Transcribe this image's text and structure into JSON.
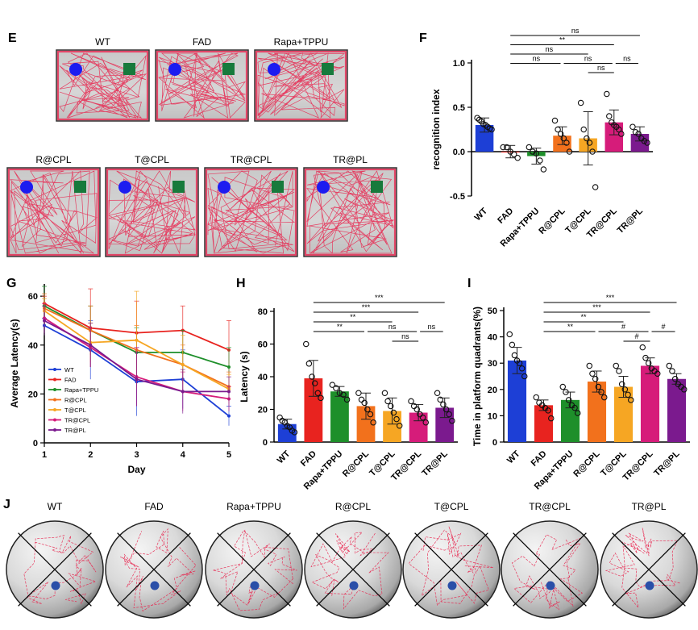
{
  "panel_letters": {
    "E": "E",
    "F": "F",
    "G": "G",
    "H": "H",
    "I": "I",
    "J": "J"
  },
  "groups": [
    "WT",
    "FAD",
    "Rapa+TPPU",
    "R@CPL",
    "T@CPL",
    "TR@CPL",
    "TR@PL"
  ],
  "colors": {
    "WT": "#1d3fd6",
    "FAD": "#e8231f",
    "Rapa+TPPU": "#1e8f2a",
    "R@CPL": "#f2711c",
    "T@CPL": "#f6a623",
    "TR@CPL": "#d61c7a",
    "TR@PL": "#7b1a8e",
    "track": "#e8264f",
    "object_circle": "#1c1cf0",
    "object_square": "#177a3c",
    "platform": "#2a4fa8"
  },
  "panel_E": {
    "tiles": [
      "WT",
      "FAD",
      "Rapa+TPPU",
      "R@CPL",
      "T@CPL",
      "TR@CPL",
      "TR@PL"
    ],
    "description_icons": [
      "object-circle",
      "object-square"
    ]
  },
  "panel_J": {
    "tiles": [
      "WT",
      "FAD",
      "Rapa+TPPU",
      "R@CPL",
      "T@CPL",
      "TR@CPL",
      "TR@PL"
    ]
  },
  "chart_data": [
    {
      "id": "F",
      "type": "bar",
      "title": "",
      "xlabel": "",
      "ylabel": "recognition index",
      "ylim": [
        -0.5,
        1.0
      ],
      "yticks": [
        "-0.5",
        "0.0",
        "0.5",
        "1.0"
      ],
      "yticks_values": [
        -0.5,
        0.0,
        0.5,
        1.0
      ],
      "categories": [
        "WT",
        "FAD",
        "Rapa+TPPU",
        "R@CPL",
        "T@CPL",
        "TR@CPL",
        "TR@PL"
      ],
      "values": [
        0.3,
        0.0,
        -0.05,
        0.18,
        0.15,
        0.33,
        0.2
      ],
      "errors": [
        0.08,
        0.07,
        0.09,
        0.1,
        0.3,
        0.14,
        0.08
      ],
      "points": [
        [
          0.38,
          0.36,
          0.34,
          0.31,
          0.3,
          0.28,
          0.26,
          0.25
        ],
        [
          0.05,
          0.05,
          0.0,
          -0.03,
          -0.07
        ],
        [
          0.05,
          0.0,
          -0.02,
          -0.1,
          -0.2
        ],
        [
          0.35,
          0.25,
          0.2,
          0.15,
          0.1,
          0.0
        ],
        [
          0.55,
          0.25,
          0.15,
          0.1,
          0.0,
          -0.4
        ],
        [
          0.65,
          0.4,
          0.33,
          0.3,
          0.28,
          0.25,
          0.2
        ],
        [
          0.28,
          0.22,
          0.2,
          0.15,
          0.12,
          0.1
        ]
      ],
      "brackets": [
        {
          "from": 1,
          "to": 6,
          "level": 0,
          "label": "ns"
        },
        {
          "from": 1,
          "to": 5,
          "level": 1,
          "label": "**"
        },
        {
          "from": 1,
          "to": 4,
          "level": 2,
          "label": "ns"
        },
        {
          "from": 1,
          "to": 3,
          "level": 3,
          "label": "ns"
        },
        {
          "from": 3,
          "to": 5,
          "level": 3,
          "label": "ns"
        },
        {
          "from": 5,
          "to": 6,
          "level": 3,
          "label": "ns"
        },
        {
          "from": 4,
          "to": 5,
          "level": 4,
          "label": "ns"
        }
      ]
    },
    {
      "id": "G",
      "type": "line",
      "title": "",
      "xlabel": "Day",
      "ylabel": "Average Latency(s)",
      "x": [
        1,
        2,
        3,
        4,
        5
      ],
      "xticks": [
        "1",
        "2",
        "3",
        "4",
        "5"
      ],
      "ylim": [
        0,
        65
      ],
      "yticks": [
        "0",
        "20",
        "40",
        "60"
      ],
      "yticks_values": [
        0,
        20,
        40,
        60
      ],
      "legend_position": "lower-left",
      "series": [
        {
          "name": "WT",
          "values": [
            48,
            38,
            25,
            26,
            11
          ],
          "err": [
            3,
            12,
            14,
            12,
            4
          ]
        },
        {
          "name": "FAD",
          "values": [
            57,
            47,
            45,
            46,
            38
          ],
          "err": [
            3,
            16,
            13,
            10,
            12
          ]
        },
        {
          "name": "Rapa+TPPU",
          "values": [
            56,
            46,
            37,
            37,
            31
          ],
          "err": [
            8,
            10,
            10,
            9,
            8
          ]
        },
        {
          "name": "R@CPL",
          "values": [
            55,
            46,
            38,
            32,
            23
          ],
          "err": [
            6,
            10,
            10,
            8,
            6
          ]
        },
        {
          "name": "T@CPL",
          "values": [
            54,
            41,
            42,
            32,
            22
          ],
          "err": [
            5,
            8,
            20,
            12,
            6
          ]
        },
        {
          "name": "TR@CPL",
          "values": [
            51,
            39,
            27,
            21,
            18
          ],
          "err": [
            6,
            8,
            12,
            8,
            5
          ]
        },
        {
          "name": "TR@PL",
          "values": [
            50,
            40,
            26,
            21,
            21
          ],
          "err": [
            6,
            9,
            11,
            9,
            6
          ]
        }
      ]
    },
    {
      "id": "H",
      "type": "bar",
      "title": "",
      "xlabel": "",
      "ylabel": "Latency (s)",
      "ylim": [
        0,
        80
      ],
      "yticks": [
        "0",
        "20",
        "40",
        "60",
        "80"
      ],
      "yticks_values": [
        0,
        20,
        40,
        60,
        80
      ],
      "categories": [
        "WT",
        "FAD",
        "Rapa+TPPU",
        "R@CPL",
        "T@CPL",
        "TR@CPL",
        "TR@PL"
      ],
      "values": [
        11,
        39,
        31,
        22,
        19,
        18,
        21
      ],
      "errors": [
        3,
        11,
        3,
        8,
        8,
        5,
        6
      ],
      "points": [
        [
          15,
          13,
          12,
          10,
          9,
          7,
          6
        ],
        [
          60,
          48,
          40,
          36,
          30,
          27
        ],
        [
          35,
          33,
          30,
          29,
          26
        ],
        [
          30,
          26,
          24,
          20,
          17,
          12
        ],
        [
          30,
          25,
          22,
          18,
          14,
          10
        ],
        [
          25,
          22,
          20,
          17,
          15,
          12
        ],
        [
          30,
          26,
          23,
          20,
          17,
          13
        ]
      ],
      "brackets": [
        {
          "from": 1,
          "to": 6,
          "level": 0,
          "label": "***"
        },
        {
          "from": 1,
          "to": 5,
          "level": 1,
          "label": "***"
        },
        {
          "from": 1,
          "to": 4,
          "level": 2,
          "label": "**"
        },
        {
          "from": 1,
          "to": 3,
          "level": 3,
          "label": "**"
        },
        {
          "from": 3,
          "to": 5,
          "level": 3,
          "label": "ns"
        },
        {
          "from": 5,
          "to": 6,
          "level": 3,
          "label": "ns"
        },
        {
          "from": 4,
          "to": 5,
          "level": 4,
          "label": "ns"
        }
      ]
    },
    {
      "id": "I",
      "type": "bar",
      "title": "",
      "xlabel": "",
      "ylabel": "Time in platform quadrants(%)",
      "ylim": [
        0,
        50
      ],
      "yticks": [
        "0",
        "10",
        "20",
        "30",
        "40",
        "50"
      ],
      "yticks_values": [
        0,
        10,
        20,
        30,
        40,
        50
      ],
      "categories": [
        "WT",
        "FAD",
        "Rapa+TPPU",
        "R@CPL",
        "T@CPL",
        "TR@CPL",
        "TR@PL"
      ],
      "values": [
        31,
        14,
        16,
        23,
        21,
        29,
        24
      ],
      "errors": [
        5,
        2,
        3,
        4,
        4,
        3,
        2
      ],
      "points": [
        [
          41,
          37,
          33,
          31,
          30,
          28,
          25
        ],
        [
          17,
          15,
          14,
          13,
          12,
          9
        ],
        [
          21,
          19,
          16,
          14,
          13,
          11
        ],
        [
          29,
          26,
          24,
          21,
          19,
          17
        ],
        [
          29,
          27,
          22,
          20,
          18,
          16
        ],
        [
          36,
          32,
          30,
          28,
          27,
          26
        ],
        [
          29,
          27,
          24,
          22,
          21,
          20
        ]
      ],
      "brackets": [
        {
          "from": 1,
          "to": 6,
          "level": 0,
          "label": "***"
        },
        {
          "from": 1,
          "to": 5,
          "level": 1,
          "label": "***"
        },
        {
          "from": 1,
          "to": 4,
          "level": 2,
          "label": "**"
        },
        {
          "from": 1,
          "to": 3,
          "level": 3,
          "label": "**"
        },
        {
          "from": 3,
          "to": 5,
          "level": 3,
          "label": "#"
        },
        {
          "from": 5,
          "to": 6,
          "level": 3,
          "label": "#"
        },
        {
          "from": 4,
          "to": 5,
          "level": 4,
          "label": "#"
        }
      ]
    }
  ]
}
